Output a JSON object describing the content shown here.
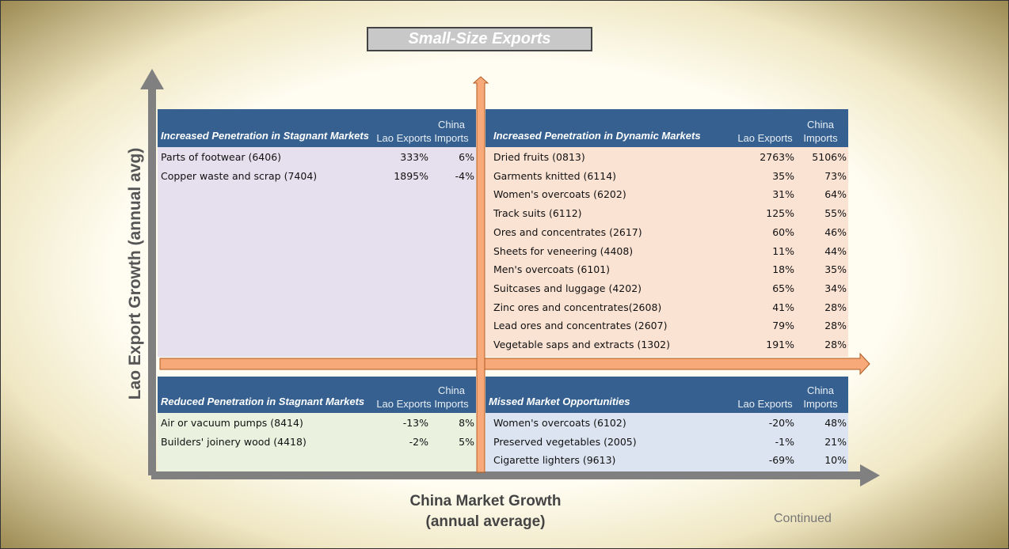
{
  "title": "Small-Size Exports",
  "y_axis_label": "Lao Export Growth (annual avg)",
  "x_axis_label": [
    "China  Market Growth",
    "(annual average)"
  ],
  "footer": "Continued",
  "quadrants": [
    {
      "title": "Increased Penetration in Stagnant Markets",
      "columns": [
        "Lao Exports",
        "China Imports"
      ],
      "rows": [
        [
          "Parts of footwear (6406)",
          "333%",
          "6%"
        ],
        [
          "Copper waste and scrap (7404)",
          "1895%",
          "-4%"
        ]
      ]
    },
    {
      "title": "Increased Penetration in Dynamic Markets",
      "columns": [
        "Lao Exports",
        "China Imports"
      ],
      "rows": [
        [
          "Dried fruits (0813)",
          "2763%",
          "5106%"
        ],
        [
          "Garments  knitted (6114)",
          "35%",
          "73%"
        ],
        [
          "Women's overcoats (6202)",
          "31%",
          "64%"
        ],
        [
          "Track suits (6112)",
          "125%",
          "55%"
        ],
        [
          "Ores and concentrates (2617)",
          "60%",
          "46%"
        ],
        [
          "Sheets for veneering (4408)",
          "11%",
          "44%"
        ],
        [
          "Men's overcoats (6101)",
          "18%",
          "35%"
        ],
        [
          "Suitcases and luggage (4202)",
          "65%",
          "34%"
        ],
        [
          "Zinc ores and concentrates(2608)",
          "41%",
          "28%"
        ],
        [
          "Lead ores and concentrates (2607)",
          "79%",
          "28%"
        ],
        [
          "Vegetable saps and extracts (1302)",
          "191%",
          "28%"
        ]
      ]
    },
    {
      "title": "Reduced Penetration in Stagnant Markets",
      "columns": [
        "Lao Exports",
        "China Imports"
      ],
      "rows": [
        [
          "Air or vacuum pumps (8414)",
          "-13%",
          "8%"
        ],
        [
          "Builders' joinery wood (4418)",
          "-2%",
          "5%"
        ]
      ]
    },
    {
      "title": "Missed Market Opportunities",
      "columns": [
        "Lao Exports",
        "China Imports"
      ],
      "rows": [
        [
          "Women's  overcoats (6102)",
          "-20%",
          "48%"
        ],
        [
          "Preserved vegetables (2005)",
          "-1%",
          "21%"
        ],
        [
          "Cigarette lighters (9613)",
          "-69%",
          "10%"
        ]
      ]
    }
  ]
}
